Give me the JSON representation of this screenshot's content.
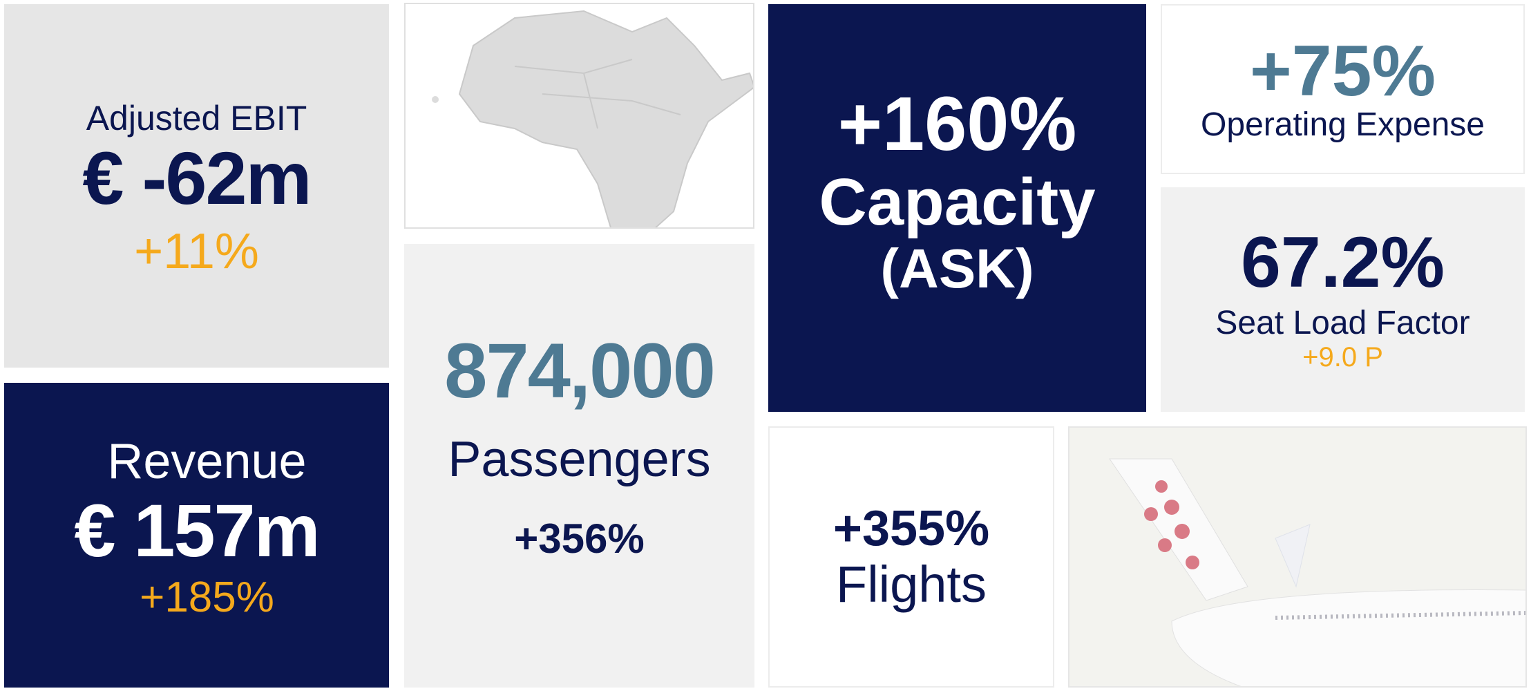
{
  "tiles": {
    "adjusted_ebit": {
      "label": "Adjusted EBIT",
      "value": "€ -62m",
      "change": "+11%"
    },
    "revenue": {
      "label": "Revenue",
      "value": "€ 157m",
      "change": "+185%"
    },
    "passengers": {
      "value": "874,000",
      "label": "Passengers",
      "change": "+356%"
    },
    "capacity": {
      "value": "+160%",
      "label": "Capacity",
      "sublabel": "(ASK)"
    },
    "operating_expense": {
      "value": "+75%",
      "label": "Operating Expense"
    },
    "seat_load_factor": {
      "value": "67.2%",
      "label": "Seat Load Factor",
      "change": "+9.0 P"
    },
    "flights": {
      "value": "+355%",
      "label": "Flights"
    }
  }
}
